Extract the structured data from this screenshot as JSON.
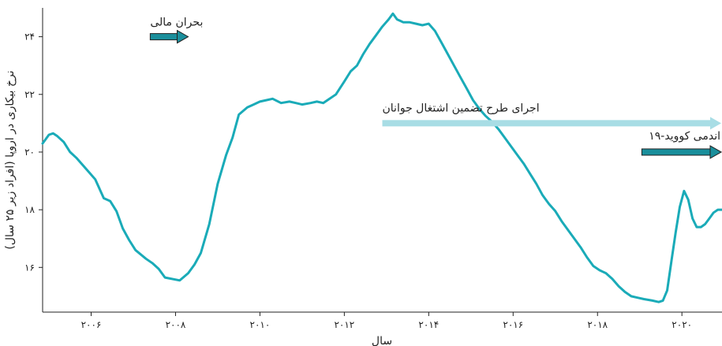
{
  "chart_data": {
    "type": "line",
    "xlabel": "سال",
    "ylabel": "نرخ بیکاری در اروپا (افراد زیر ۲۵ سال)",
    "xlim": [
      2004.85,
      2020.95
    ],
    "ylim": [
      14.45,
      25.0
    ],
    "grid": false,
    "x_ticks": [
      {
        "value": 2006,
        "label": "۲۰۰۶"
      },
      {
        "value": 2008,
        "label": "۲۰۰۸"
      },
      {
        "value": 2010,
        "label": "۲۰۱۰"
      },
      {
        "value": 2012,
        "label": "۲۰۱۲"
      },
      {
        "value": 2014,
        "label": "۲۰۱۴"
      },
      {
        "value": 2016,
        "label": "۲۰۱۶"
      },
      {
        "value": 2018,
        "label": "۲۰۱۸"
      },
      {
        "value": 2020,
        "label": "۲۰۲۰"
      }
    ],
    "y_ticks": [
      {
        "value": 16,
        "label": "۱۶"
      },
      {
        "value": 18,
        "label": "۱۸"
      },
      {
        "value": 20,
        "label": "۲۰"
      },
      {
        "value": 22,
        "label": "۲۲"
      },
      {
        "value": 24,
        "label": "۲۴"
      }
    ],
    "line_color": "#1aabb8",
    "series": [
      {
        "values": [
          [
            2004.85,
            20.3
          ],
          [
            2005.0,
            20.6
          ],
          [
            2005.1,
            20.65
          ],
          [
            2005.2,
            20.55
          ],
          [
            2005.35,
            20.35
          ],
          [
            2005.5,
            20.0
          ],
          [
            2005.65,
            19.8
          ],
          [
            2005.8,
            19.55
          ],
          [
            2005.95,
            19.3
          ],
          [
            2006.1,
            19.05
          ],
          [
            2006.3,
            18.4
          ],
          [
            2006.45,
            18.3
          ],
          [
            2006.6,
            17.95
          ],
          [
            2006.75,
            17.35
          ],
          [
            2006.9,
            16.95
          ],
          [
            2007.05,
            16.6
          ],
          [
            2007.3,
            16.3
          ],
          [
            2007.45,
            16.15
          ],
          [
            2007.6,
            15.95
          ],
          [
            2007.75,
            15.65
          ],
          [
            2008.1,
            15.55
          ],
          [
            2008.3,
            15.8
          ],
          [
            2008.45,
            16.1
          ],
          [
            2008.6,
            16.5
          ],
          [
            2008.8,
            17.5
          ],
          [
            2009.0,
            18.9
          ],
          [
            2009.2,
            19.9
          ],
          [
            2009.35,
            20.5
          ],
          [
            2009.5,
            21.3
          ],
          [
            2009.7,
            21.55
          ],
          [
            2009.85,
            21.65
          ],
          [
            2010.0,
            21.75
          ],
          [
            2010.15,
            21.8
          ],
          [
            2010.3,
            21.85
          ],
          [
            2010.5,
            21.7
          ],
          [
            2010.7,
            21.75
          ],
          [
            2010.85,
            21.7
          ],
          [
            2011.0,
            21.65
          ],
          [
            2011.2,
            21.7
          ],
          [
            2011.35,
            21.75
          ],
          [
            2011.5,
            21.7
          ],
          [
            2011.65,
            21.85
          ],
          [
            2011.8,
            22.0
          ],
          [
            2012.0,
            22.45
          ],
          [
            2012.15,
            22.8
          ],
          [
            2012.3,
            23.0
          ],
          [
            2012.45,
            23.4
          ],
          [
            2012.6,
            23.75
          ],
          [
            2012.75,
            24.05
          ],
          [
            2012.9,
            24.35
          ],
          [
            2013.05,
            24.6
          ],
          [
            2013.15,
            24.8
          ],
          [
            2013.25,
            24.6
          ],
          [
            2013.4,
            24.5
          ],
          [
            2013.55,
            24.5
          ],
          [
            2013.7,
            24.45
          ],
          [
            2013.85,
            24.4
          ],
          [
            2014.0,
            24.45
          ],
          [
            2014.15,
            24.2
          ],
          [
            2014.3,
            23.8
          ],
          [
            2014.45,
            23.4
          ],
          [
            2014.6,
            23.0
          ],
          [
            2014.75,
            22.6
          ],
          [
            2014.9,
            22.2
          ],
          [
            2015.05,
            21.8
          ],
          [
            2015.2,
            21.5
          ],
          [
            2015.35,
            21.25
          ],
          [
            2015.5,
            21.05
          ],
          [
            2015.65,
            20.8
          ],
          [
            2015.8,
            20.5
          ],
          [
            2015.95,
            20.2
          ],
          [
            2016.1,
            19.9
          ],
          [
            2016.25,
            19.6
          ],
          [
            2016.4,
            19.25
          ],
          [
            2016.55,
            18.9
          ],
          [
            2016.7,
            18.5
          ],
          [
            2016.85,
            18.2
          ],
          [
            2017.0,
            17.95
          ],
          [
            2017.15,
            17.6
          ],
          [
            2017.3,
            17.3
          ],
          [
            2017.45,
            17.0
          ],
          [
            2017.6,
            16.7
          ],
          [
            2017.75,
            16.35
          ],
          [
            2017.9,
            16.05
          ],
          [
            2018.05,
            15.9
          ],
          [
            2018.2,
            15.8
          ],
          [
            2018.35,
            15.6
          ],
          [
            2018.5,
            15.35
          ],
          [
            2018.65,
            15.15
          ],
          [
            2018.8,
            15.0
          ],
          [
            2018.95,
            14.95
          ],
          [
            2019.1,
            14.9
          ],
          [
            2019.3,
            14.85
          ],
          [
            2019.45,
            14.8
          ],
          [
            2019.55,
            14.85
          ],
          [
            2019.65,
            15.2
          ],
          [
            2019.75,
            16.2
          ],
          [
            2019.85,
            17.2
          ],
          [
            2019.95,
            18.1
          ],
          [
            2020.05,
            18.65
          ],
          [
            2020.15,
            18.35
          ],
          [
            2020.25,
            17.7
          ],
          [
            2020.35,
            17.4
          ],
          [
            2020.45,
            17.4
          ],
          [
            2020.55,
            17.5
          ],
          [
            2020.65,
            17.7
          ],
          [
            2020.75,
            17.9
          ],
          [
            2020.85,
            18.0
          ],
          [
            2020.95,
            18.0
          ]
        ]
      }
    ],
    "annotations": [
      {
        "text": "بحران مالی",
        "arrow_start": 2007.4,
        "arrow_end": 2008.3,
        "arrow_y": 24.0,
        "color": "#1a8f9c"
      },
      {
        "text": "اجرای طرح تضمین اشتغال جوانان",
        "arrow_start": 2012.9,
        "arrow_end": 2020.95,
        "arrow_y": 21.0,
        "color": "#a8dde5"
      },
      {
        "text": "اندمی کووید-۱۹",
        "arrow_start": 2019.05,
        "arrow_end": 2020.95,
        "arrow_y": 20.0,
        "color": "#1a8f9c"
      }
    ]
  }
}
